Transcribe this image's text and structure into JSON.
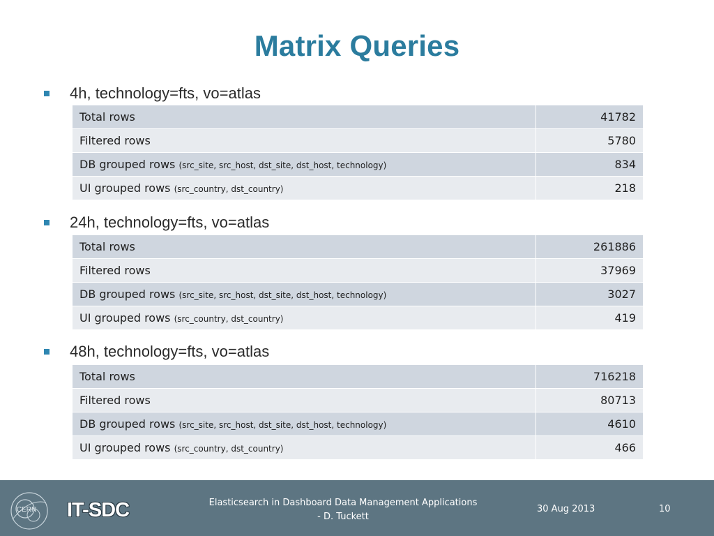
{
  "slide": {
    "title": "Matrix Queries"
  },
  "sections": [
    {
      "heading": "4h, technology=fts, vo=atlas",
      "rows": [
        {
          "label": "Total rows",
          "detail": "",
          "value": "41782"
        },
        {
          "label": "Filtered rows",
          "detail": "",
          "value": "5780"
        },
        {
          "label": "DB grouped rows",
          "detail": "(src_site, src_host, dst_site, dst_host, technology)",
          "value": "834"
        },
        {
          "label": "UI grouped rows",
          "detail": "(src_country, dst_country)",
          "value": "218"
        }
      ]
    },
    {
      "heading": "24h, technology=fts, vo=atlas",
      "rows": [
        {
          "label": "Total rows",
          "detail": "",
          "value": "261886"
        },
        {
          "label": "Filtered rows",
          "detail": "",
          "value": "37969"
        },
        {
          "label": "DB grouped rows",
          "detail": "(src_site, src_host, dst_site, dst_host, technology)",
          "value": "3027"
        },
        {
          "label": "UI grouped rows",
          "detail": "(src_country, dst_country)",
          "value": "419"
        }
      ]
    },
    {
      "heading": "48h, technology=fts, vo=atlas",
      "rows": [
        {
          "label": "Total rows",
          "detail": "",
          "value": "716218"
        },
        {
          "label": "Filtered rows",
          "detail": "",
          "value": "80713"
        },
        {
          "label": "DB grouped rows",
          "detail": "(src_site, src_host, dst_site, dst_host, technology)",
          "value": "4610"
        },
        {
          "label": "UI grouped rows",
          "detail": "(src_country, dst_country)",
          "value": "466"
        }
      ]
    }
  ],
  "footer": {
    "logo_text": "CERN",
    "group": "IT-SDC",
    "line1": "Elasticsearch in Dashboard Data Management  Applications",
    "line2": "- D. Tuckett",
    "date": "30 Aug 2013",
    "page_number": "10"
  },
  "colors": {
    "title": "#2b7c9e",
    "bullet": "#2e86b1",
    "row_dark": "#cfd6df",
    "row_light": "#e8ebef",
    "footer_bg": "#5d7582"
  }
}
